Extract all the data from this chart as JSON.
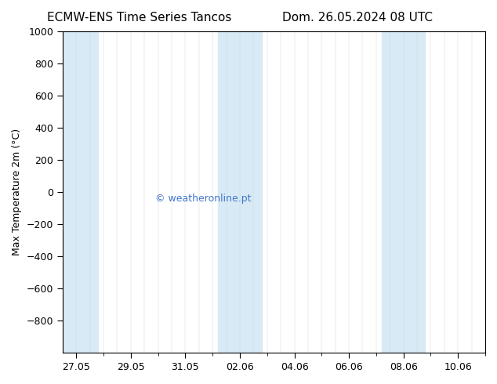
{
  "title_left": "ECMW-ENS Time Series Tancos",
  "title_right": "Dom. 26.05.2024 08 UTC",
  "ylabel": "Max Temperature 2m (°C)",
  "ylim": [
    -1000,
    1000
  ],
  "yticks": [
    -800,
    -600,
    -400,
    -200,
    0,
    200,
    400,
    600,
    800,
    1000
  ],
  "xtick_labels": [
    "27.05",
    "29.05",
    "31.05",
    "02.06",
    "04.06",
    "06.06",
    "08.06",
    "10.06"
  ],
  "xtick_positions": [
    0,
    2,
    4,
    6,
    8,
    10,
    12,
    14
  ],
  "xlim": [
    -0.5,
    15
  ],
  "background_color": "#ffffff",
  "plot_bg_color": "#ffffff",
  "watermark": "© weatheronline.pt",
  "watermark_color": "#4477cc",
  "shaded_bands": [
    {
      "x_start": -0.5,
      "x_end": 0.8
    },
    {
      "x_start": 5.2,
      "x_end": 6.8
    },
    {
      "x_start": 11.2,
      "x_end": 12.8
    }
  ],
  "shade_color": "#d8eaf5",
  "title_fontsize": 11,
  "tick_fontsize": 9,
  "ylabel_fontsize": 9
}
